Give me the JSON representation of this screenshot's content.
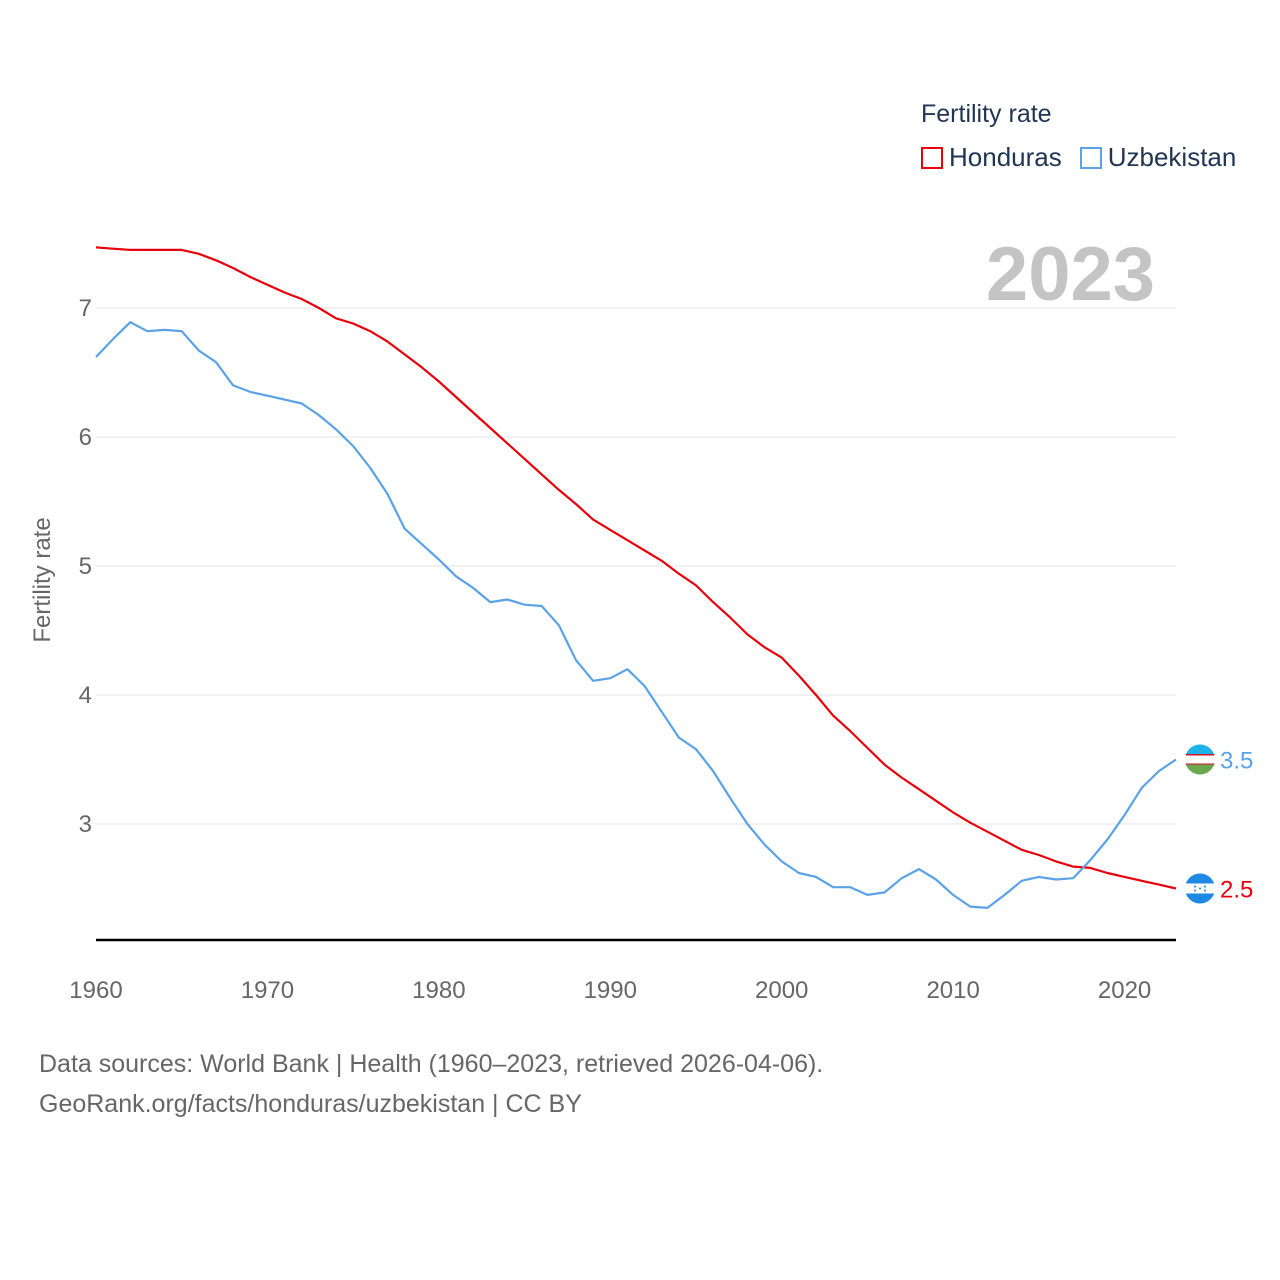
{
  "chart_data": {
    "type": "line",
    "legend_title": "Fertility rate",
    "ylabel": "Fertility rate",
    "xlabel": "",
    "year_label": "2023",
    "xlim": [
      1960,
      2023
    ],
    "ylim": [
      2.1,
      7.6
    ],
    "x_ticks": [
      1960,
      1970,
      1980,
      1990,
      2000,
      2010,
      2020
    ],
    "y_ticks": [
      3,
      4,
      5,
      6,
      7
    ],
    "legend_position": "top-right",
    "x": [
      1960,
      1961,
      1962,
      1963,
      1964,
      1965,
      1966,
      1967,
      1968,
      1969,
      1970,
      1971,
      1972,
      1973,
      1974,
      1975,
      1976,
      1977,
      1978,
      1979,
      1980,
      1981,
      1982,
      1983,
      1984,
      1985,
      1986,
      1987,
      1988,
      1989,
      1990,
      1991,
      1992,
      1993,
      1994,
      1995,
      1996,
      1997,
      1998,
      1999,
      2000,
      2001,
      2002,
      2003,
      2004,
      2005,
      2006,
      2007,
      2008,
      2009,
      2010,
      2011,
      2012,
      2013,
      2014,
      2015,
      2016,
      2017,
      2018,
      2019,
      2020,
      2021,
      2022,
      2023
    ],
    "series": [
      {
        "name": "Honduras",
        "color": "#e8000b",
        "end_label": "2.5",
        "values": [
          7.47,
          7.46,
          7.45,
          7.45,
          7.45,
          7.45,
          7.42,
          7.37,
          7.31,
          7.24,
          7.18,
          7.12,
          7.07,
          7.0,
          6.92,
          6.88,
          6.82,
          6.74,
          6.64,
          6.54,
          6.43,
          6.31,
          6.19,
          6.07,
          5.95,
          5.83,
          5.71,
          5.59,
          5.48,
          5.36,
          5.28,
          5.2,
          5.12,
          5.04,
          4.94,
          4.85,
          4.72,
          4.6,
          4.47,
          4.37,
          4.29,
          4.15,
          4.0,
          3.84,
          3.72,
          3.59,
          3.46,
          3.36,
          3.27,
          3.18,
          3.09,
          3.01,
          2.94,
          2.87,
          2.8,
          2.76,
          2.71,
          2.67,
          2.66,
          2.62,
          2.59,
          2.56,
          2.53,
          2.5
        ]
      },
      {
        "name": "Uzbekistan",
        "color": "#5aa2e8",
        "end_label": "3.5",
        "values": [
          6.62,
          6.76,
          6.89,
          6.82,
          6.83,
          6.82,
          6.67,
          6.58,
          6.4,
          6.35,
          6.32,
          6.29,
          6.26,
          6.17,
          6.06,
          5.93,
          5.76,
          5.56,
          5.29,
          5.17,
          5.05,
          4.92,
          4.83,
          4.72,
          4.74,
          4.7,
          4.69,
          4.54,
          4.27,
          4.11,
          4.13,
          4.2,
          4.07,
          3.87,
          3.67,
          3.58,
          3.41,
          3.2,
          3.0,
          2.84,
          2.71,
          2.62,
          2.59,
          2.51,
          2.51,
          2.45,
          2.47,
          2.58,
          2.65,
          2.57,
          2.45,
          2.36,
          2.35,
          2.45,
          2.56,
          2.59,
          2.57,
          2.58,
          2.72,
          2.88,
          3.07,
          3.28,
          3.41,
          3.5
        ]
      }
    ]
  },
  "sources": {
    "line1": "Data sources: World Bank | Health (1960–2023, retrieved 2026-04-06).",
    "line2": "GeoRank.org/facts/honduras/uzbekistan | CC BY"
  }
}
